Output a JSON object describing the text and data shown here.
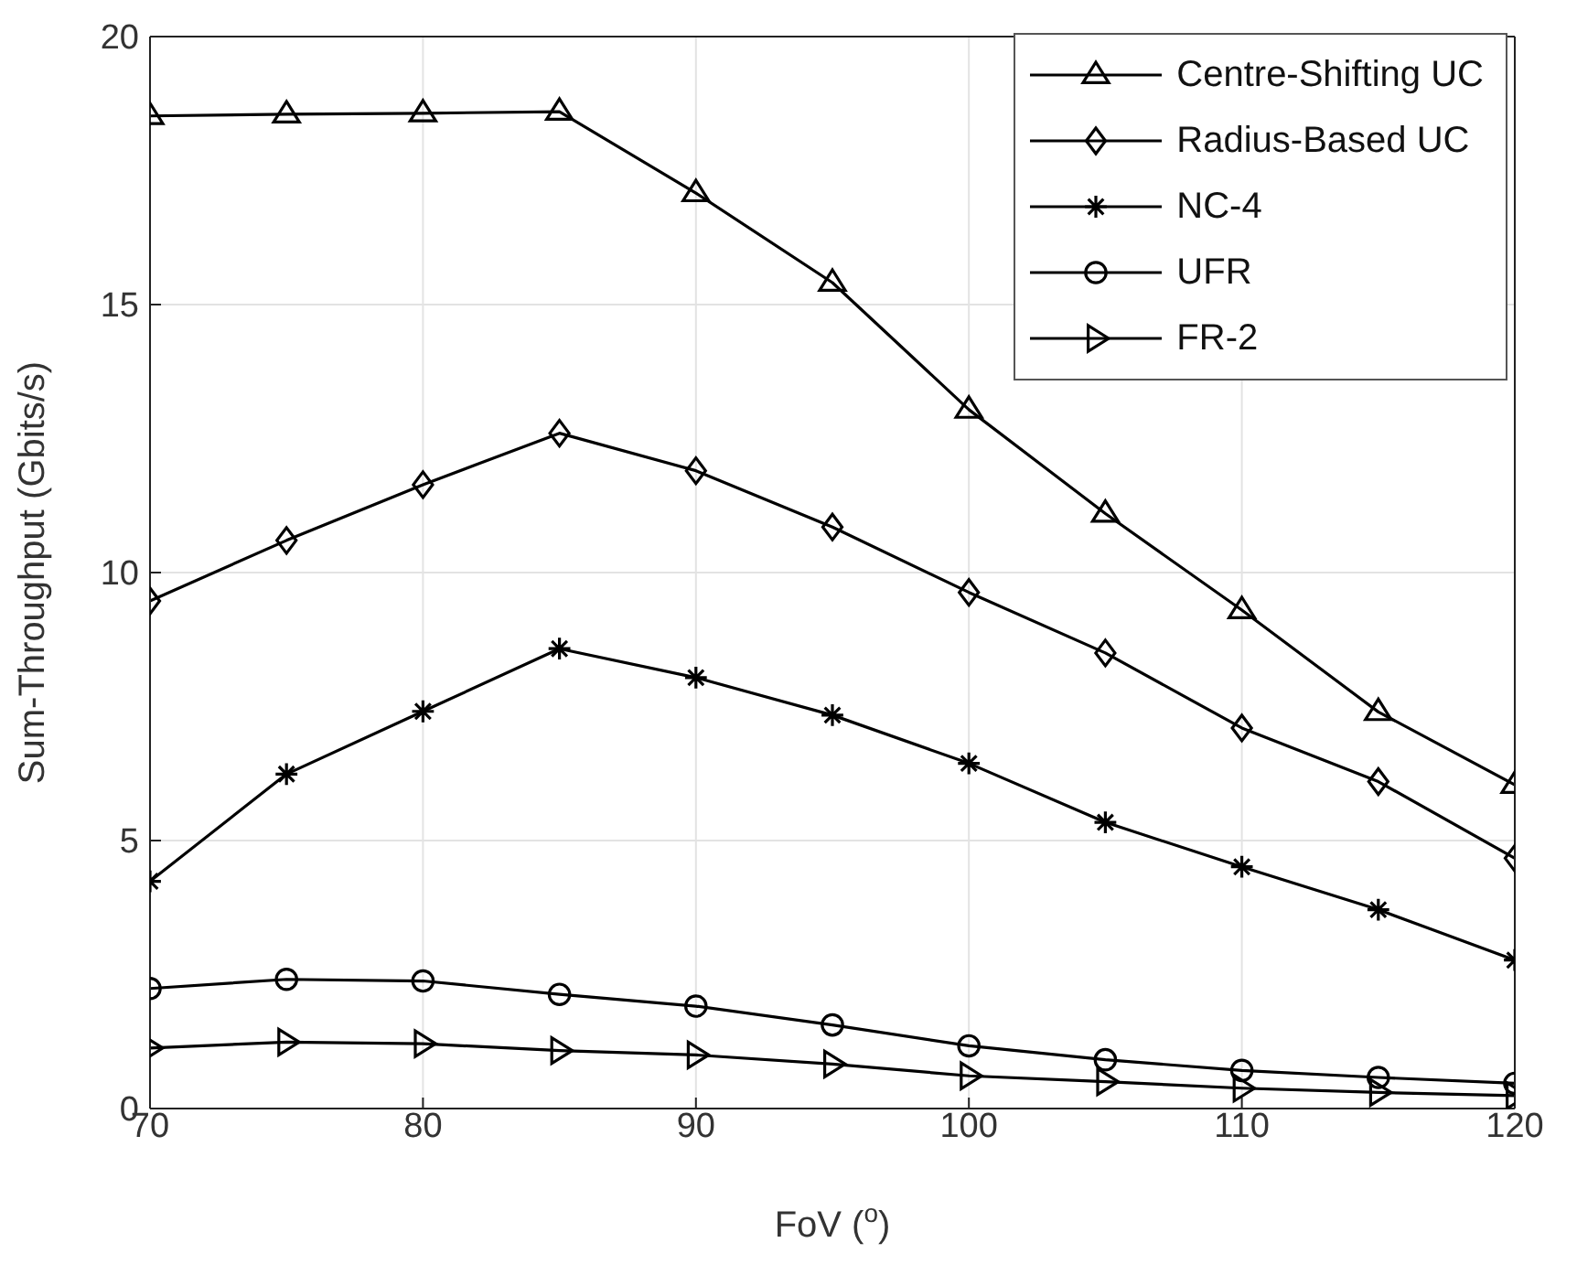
{
  "chart_data": {
    "type": "line",
    "xlabel": "FoV ($^{o}$)",
    "ylabel": "Sum-Throughput (Gbits/s)",
    "x": [
      70,
      75,
      80,
      85,
      90,
      95,
      100,
      105,
      110,
      115,
      120
    ],
    "xlim": [
      70,
      120
    ],
    "xticks": [
      70,
      80,
      90,
      100,
      110,
      120
    ],
    "ylim": [
      0,
      20
    ],
    "yticks": [
      0,
      5,
      10,
      15,
      20
    ],
    "grid": true,
    "legend": "top right",
    "line_style": "solid",
    "series": [
      {
        "name": "Centre-Shifting UC",
        "color": "#000000",
        "marker": "triangle",
        "values": [
          18.52,
          18.55,
          18.57,
          18.6,
          17.08,
          15.41,
          13.04,
          11.1,
          9.3,
          7.4,
          6.04
        ]
      },
      {
        "name": "Radius-Based UC",
        "color": "#000000",
        "marker": "diamond",
        "values": [
          9.47,
          10.6,
          11.64,
          12.6,
          11.9,
          10.85,
          9.63,
          8.5,
          7.1,
          6.1,
          4.67
        ]
      },
      {
        "name": "NC-4",
        "color": "#000000",
        "marker": "cross",
        "values": [
          4.24,
          6.24,
          7.41,
          8.58,
          8.04,
          7.34,
          6.44,
          5.34,
          4.51,
          3.71,
          2.77
        ]
      },
      {
        "name": "UFR",
        "color": "#000000",
        "marker": "circle",
        "values": [
          2.24,
          2.41,
          2.38,
          2.13,
          1.91,
          1.56,
          1.17,
          0.91,
          0.71,
          0.58,
          0.47
        ]
      },
      {
        "name": "FR-2",
        "color": "#000000",
        "marker": "triangle-right",
        "values": [
          1.13,
          1.24,
          1.21,
          1.08,
          1.0,
          0.83,
          0.61,
          0.5,
          0.38,
          0.3,
          0.24
        ]
      }
    ]
  }
}
